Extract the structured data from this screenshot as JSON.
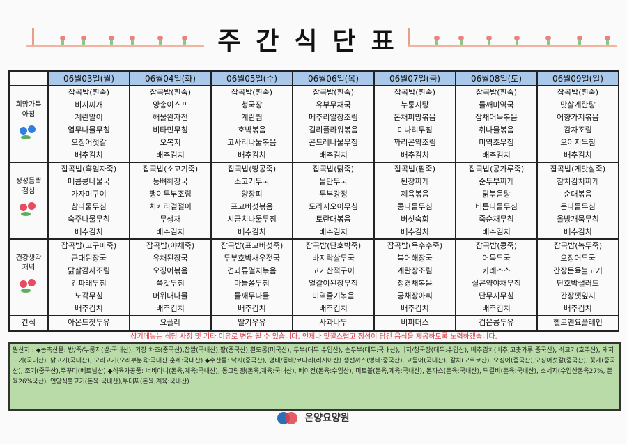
{
  "title": "주간식단표",
  "days": [
    "06월03일(월)",
    "06월04일(화)",
    "06월05일(수)",
    "06월06일(목)",
    "06월07일(금)",
    "06월08일(토)",
    "06월09일(일)"
  ],
  "meals": [
    {
      "label": "희망가득 아침",
      "flower": "blue-flower-icon",
      "items": [
        [
          "잡곡밥(흰죽)",
          "비지찌개",
          "계란말이",
          "열무나물무침",
          "오징어젓갈",
          "배추김치"
        ],
        [
          "잡곡밥(흰죽)",
          "양송이스프",
          "해물완자전",
          "비타민무침",
          "오복지",
          "배추김치"
        ],
        [
          "잡곡밥(흰죽)",
          "청국장",
          "계란찜",
          "호박볶음",
          "고사리나물볶음",
          "배추김치"
        ],
        [
          "잡곡밥(흰죽)",
          "유부무채국",
          "메추리알장조림",
          "컬리플라워볶음",
          "곤드레나물무침",
          "배추김치"
        ],
        [
          "잡곡밥(흰죽)",
          "누룽지탕",
          "돈채피망볶음",
          "미나리무침",
          "꽈리곤약조림",
          "배추김치"
        ],
        [
          "잡곡밥(흰죽)",
          "들깨미역국",
          "잡채어묵볶음",
          "취나물볶음",
          "미역초무침",
          "배추김치"
        ],
        [
          "잡곡밥(흰죽)",
          "맛살계란탕",
          "어향가지볶음",
          "감자조림",
          "오이지무침",
          "배추김치"
        ]
      ]
    },
    {
      "label": "정성듬뿍 점심",
      "flower": "red-flower-icon",
      "items": [
        [
          "잡곡밥(흑임자죽)",
          "매콤콩나물국",
          "가자미구이",
          "참나물무침",
          "숙주나물무침",
          "배추김치"
        ],
        [
          "잡곡밥(소고기죽)",
          "등뼈해장국",
          "팽이두부조림",
          "치커리겉절이",
          "무생채",
          "배추김치"
        ],
        [
          "잡곡밥(땅콩죽)",
          "소고기무국",
          "양장피",
          "표고버섯볶음",
          "시금치나물무침",
          "배추김치"
        ],
        [
          "잡곡밥(닭죽)",
          "물만두국",
          "두부강정",
          "도라지오이무침",
          "토란대볶음",
          "배추김치"
        ],
        [
          "잡곡밥(팥죽)",
          "된장찌개",
          "제육볶음",
          "콩나물무침",
          "버섯숙회",
          "배추김치"
        ],
        [
          "잡곡밥(콩가루죽)",
          "순두부찌개",
          "닭볶음탕",
          "비름나물무침",
          "죽순채무침",
          "배추김치"
        ],
        [
          "잡곡밥(게맛살죽)",
          "참치김치찌개",
          "순대볶음",
          "돈나물무침",
          "올방개묵무침",
          "배추김치"
        ]
      ]
    },
    {
      "label": "건강생각 저녁",
      "flower": "red-flower-icon",
      "items": [
        [
          "잡곡밥(고구마죽)",
          "근대된장국",
          "닭살감자조림",
          "건파래무침",
          "노각무침",
          "배추김치"
        ],
        [
          "잡곡밥(야채죽)",
          "유채된장국",
          "오징어볶음",
          "쑥갓무침",
          "머위대나물",
          "배추김치"
        ],
        [
          "잡곡밥(표고버섯죽)",
          "두부호박새우젓국",
          "견과류멸치볶음",
          "마늘쫑무침",
          "들깨무나물",
          "배추김치"
        ],
        [
          "잡곡밥(단호박죽)",
          "바지락살무국",
          "고기산적구이",
          "얼갈이된장무침",
          "미역줄기볶음",
          "배추김치"
        ],
        [
          "잡곡밥(옥수수죽)",
          "북어해장국",
          "계란장조림",
          "청경채볶음",
          "궁채장아찌",
          "배추김치"
        ],
        [
          "잡곡밥(콩죽)",
          "어묵무국",
          "카레소스",
          "실곤약야채무침",
          "단무지무침",
          "배추김치"
        ],
        [
          "잡곡밥(녹두죽)",
          "오징어무국",
          "간장돈육불고기",
          "단호박샐러드",
          "간장깻잎지",
          "배추김치"
        ]
      ]
    }
  ],
  "snack": {
    "label": "간식",
    "items": [
      "아몬드잣두유",
      "요플레",
      "딸기우유",
      "사과나무",
      "비피더스",
      "검은콩두유",
      "헬로엔요플레인"
    ]
  },
  "notice": "상기메뉴는 식당 사정 및 기타 이유로 변동 될 수 있습니다. 언제나 맛깔스럽고 정성이 담긴 음식을 제공하도록 노력하겠습니다.",
  "origin": "원산지 : ◆농축산물: 밥/죽/누룽지(쌀:국내산), 기장 차조(중국산),찹쌀(국내산),팥(중국산),흰도롱(미국산), 두부(대두:수입산), 순두부(대두:국내산),비지/청국장(대두:수입산), 배추김치(배추,고춧가루:중국산), 쇠고기(호주산), 돼지고기(국내산), 닭고기(국내산), 오리고기(오리부분육:국내산 훈제:국내산) ◆수산물: 낙지(중국산), 명태/동태/코다리(러시아산) 생선까스(명태:중국산), 고등어(국내산), 갈치(모르코산), 오징어(중국산),오징어젓갈(중국산), 꽃게(중국산), 조기(중국산),주꾸미(베트남산) ◆식육가공품: 너비아니(돈육,계육:국내산), 동그랑땡(돈육,계육:국내산), 베이컨(돈육:수입산), 미트볼(돈육,계육:국내산), 돈까스(돈육:국내산), 떡갈비(돈육:국내산), 소세지(수입산돈육27%, 돈육26%국산), 언양식불고기(돈육:국내산),부대찌(돈육,계육:국내산)",
  "logo": {
    "name": "온양요양원",
    "colors": [
      "#2a6fb8",
      "#e0404a"
    ]
  },
  "colors": {
    "header_bg": "#a9c8ea",
    "origin_bg": "#b9dba8",
    "notice": "#d9333f"
  }
}
